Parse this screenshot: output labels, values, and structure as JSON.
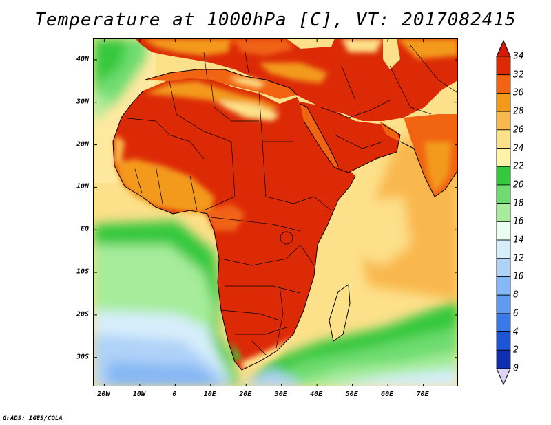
{
  "title": "Temperature at 1000hPa [C], VT: 2017082415",
  "credit": "GrADS: IGES/COLA",
  "map": {
    "lon_range": [
      -23,
      80
    ],
    "lat_range": [
      -37,
      45
    ],
    "lat_ticks": [
      {
        "value": 40,
        "label": "40N"
      },
      {
        "value": 30,
        "label": "30N"
      },
      {
        "value": 20,
        "label": "20N"
      },
      {
        "value": 10,
        "label": "10N"
      },
      {
        "value": 0,
        "label": "EQ"
      },
      {
        "value": -10,
        "label": "10S"
      },
      {
        "value": -20,
        "label": "20S"
      },
      {
        "value": -30,
        "label": "30S"
      }
    ],
    "lon_ticks": [
      {
        "value": -20,
        "label": "20W"
      },
      {
        "value": -10,
        "label": "10W"
      },
      {
        "value": 0,
        "label": "0"
      },
      {
        "value": 10,
        "label": "10E"
      },
      {
        "value": 20,
        "label": "20E"
      },
      {
        "value": 30,
        "label": "30E"
      },
      {
        "value": 40,
        "label": "40E"
      },
      {
        "value": 50,
        "label": "50E"
      },
      {
        "value": 60,
        "label": "60E"
      },
      {
        "value": 70,
        "label": "70E"
      }
    ]
  },
  "colorbar": {
    "levels": [
      "0",
      "2",
      "4",
      "6",
      "8",
      "10",
      "12",
      "14",
      "16",
      "18",
      "20",
      "22",
      "24",
      "26",
      "28",
      "30",
      "32",
      "34"
    ],
    "colors": [
      "#0a1a7a",
      "#0d2fb0",
      "#1c55d6",
      "#3a7ae8",
      "#5f9bf0",
      "#86b8f5",
      "#afd2f8",
      "#d6eefb",
      "#eafff0",
      "#a6ec9a",
      "#6edc70",
      "#36c83c",
      "#fff3a8",
      "#fde08a",
      "#f9b84e",
      "#f39a1c",
      "#f06412",
      "#dc2a06"
    ],
    "under_color": "#ddd2f5",
    "over_color": "#d31b08"
  }
}
